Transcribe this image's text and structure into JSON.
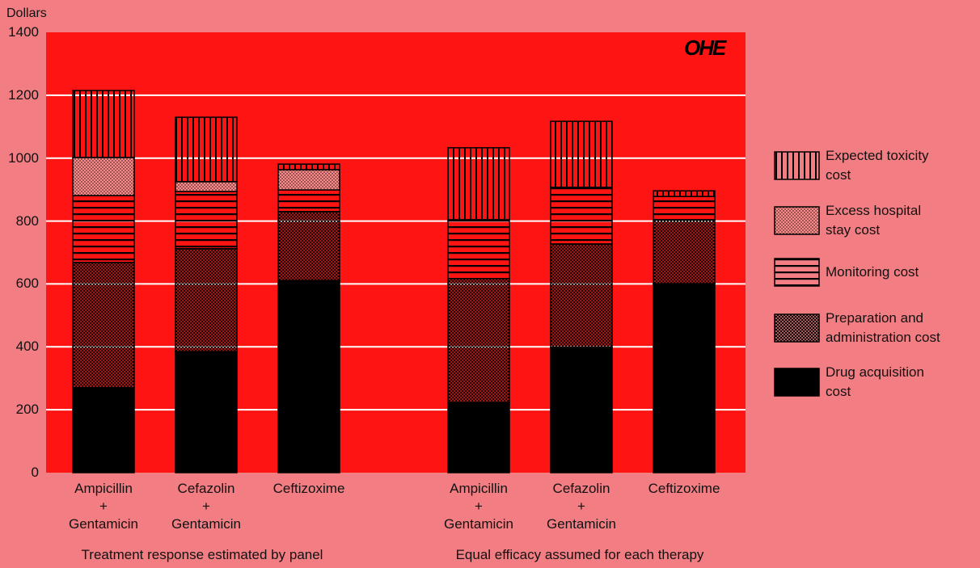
{
  "chart_data": {
    "type": "stacked_bar",
    "y_axis_label": "Dollars",
    "logo": "OHE",
    "categories": [
      "Ampicillin\n+\nGentamicin",
      "Cefazolin\n+\nGentamicin",
      "Ceftizoxime",
      "Ampicillin\n+\nGentamicin",
      "Cefazolin\n+\nGentamicin",
      "Ceftizoxime"
    ],
    "groups": [
      "Treatment response estimated by panel",
      "Equal efficacy assumed for each therapy"
    ],
    "series": [
      {
        "name": "Drug acquisition\ncost",
        "color": "#000000",
        "values": [
          270,
          385,
          611,
          223,
          398,
          601
        ]
      },
      {
        "name": "Preparation and\nadministration cost",
        "color": "#000000",
        "values": [
          398,
          327,
          219,
          394,
          329,
          203
        ]
      },
      {
        "name": "Monitoring cost",
        "color": "#000000",
        "values": [
          213,
          182,
          69,
          187,
          180,
          74
        ]
      },
      {
        "name": "Excess hospital\nstay cost",
        "color": "#000000",
        "values": [
          121,
          31,
          64,
          0,
          0,
          0
        ]
      },
      {
        "name": "Expected toxicity\ncost",
        "color": "#000000",
        "values": [
          213,
          205,
          18,
          229,
          210,
          18
        ]
      }
    ],
    "ylim": [
      0,
      1400
    ],
    "yticks": [
      0,
      200,
      400,
      600,
      800,
      1000,
      1200,
      1400
    ],
    "grid": true,
    "plot_background": "#ff1414"
  }
}
